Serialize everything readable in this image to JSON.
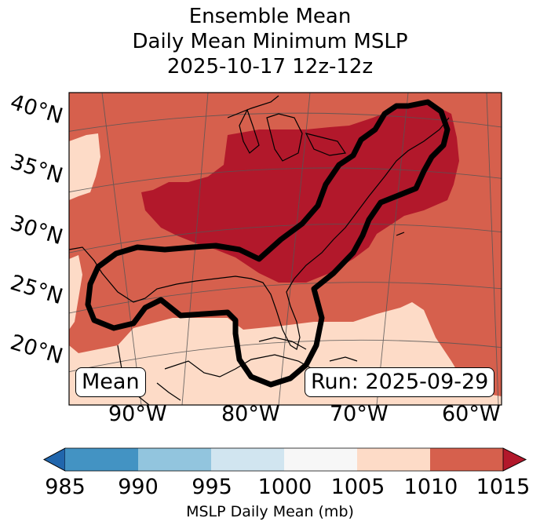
{
  "title": {
    "line1": "Ensemble Mean",
    "line2": "Daily Mean Minimum MSLP",
    "line3": "2025-10-17 12z-12z"
  },
  "map": {
    "lat_labels": [
      "40°N",
      "35°N",
      "30°N",
      "25°N",
      "20°N"
    ],
    "lon_labels": [
      "90°W",
      "80°W",
      "70°W",
      "60°W"
    ],
    "mean_label": "Mean",
    "run_label": "Run: 2025-09-29"
  },
  "colorbar": {
    "label": "MSLP Daily Mean (mb)",
    "ticks": [
      "985",
      "990",
      "995",
      "1000",
      "1005",
      "1010",
      "1015"
    ],
    "colors": {
      "under": "#2166ac",
      "985-990": "#4393c3",
      "990-995": "#92c5de",
      "995-1000": "#d1e5f0",
      "1000-1005": "#f7f7f7",
      "1005-1010": "#fddbc7",
      "1010-1015": "#d6604d",
      "over": "#b2182b"
    }
  }
}
